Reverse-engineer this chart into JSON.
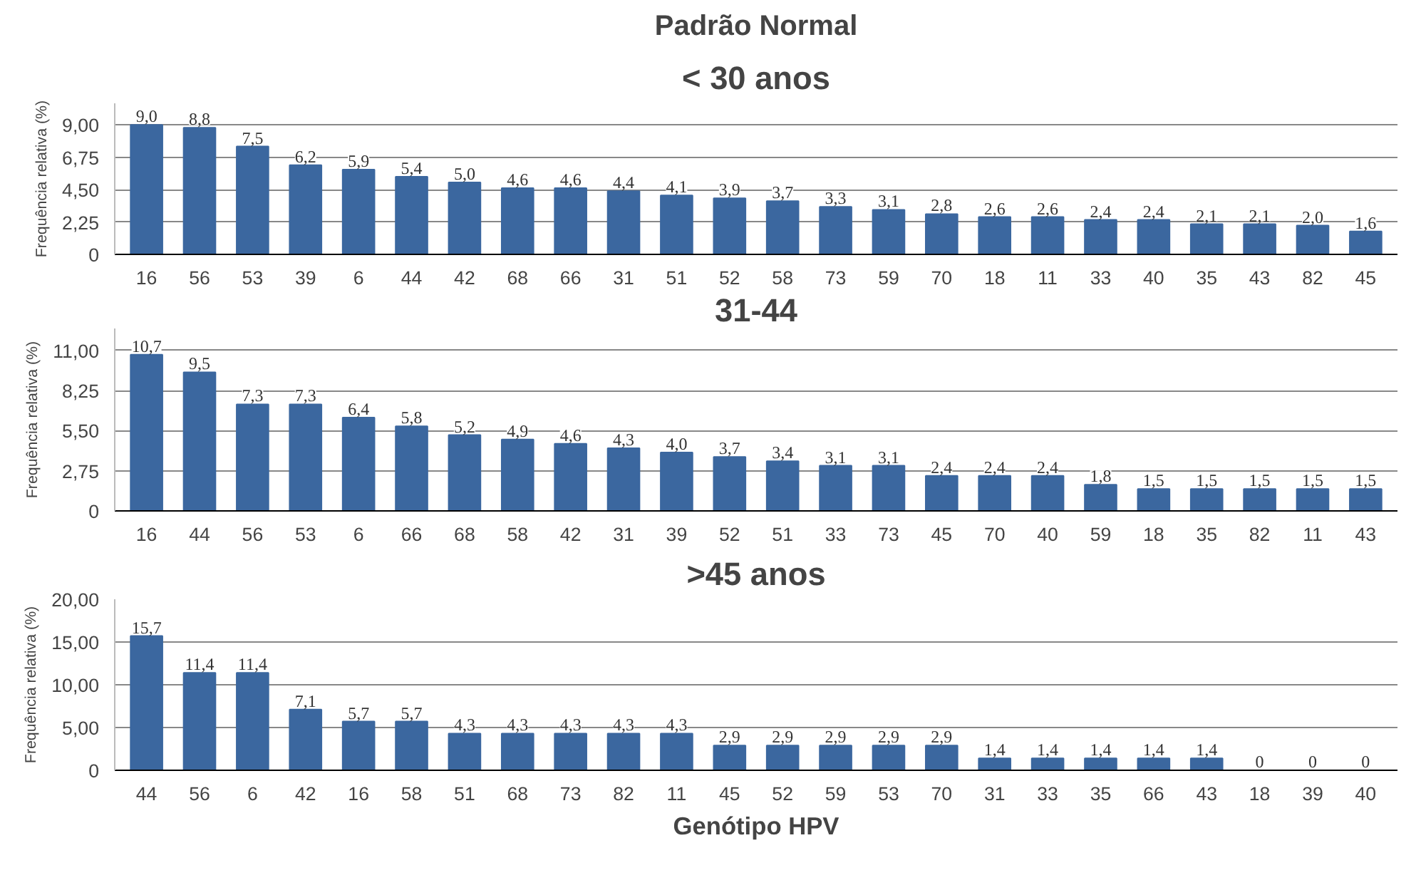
{
  "chart_data": [
    {
      "type": "bar",
      "title": "Padrão Normal",
      "subtitle": "< 30 anos",
      "ylabel": "Frequência relativa (%)",
      "categories": [
        "16",
        "56",
        "53",
        "39",
        "6",
        "44",
        "42",
        "68",
        "66",
        "31",
        "51",
        "52",
        "58",
        "73",
        "59",
        "70",
        "18",
        "11",
        "33",
        "40",
        "35",
        "43",
        "82",
        "45"
      ],
      "values": [
        9.0,
        8.8,
        7.5,
        6.2,
        5.9,
        5.4,
        5.0,
        4.6,
        4.6,
        4.4,
        4.1,
        3.9,
        3.7,
        3.3,
        3.1,
        2.8,
        2.6,
        2.6,
        2.4,
        2.4,
        2.1,
        2.1,
        2.0,
        1.6
      ],
      "value_labels": [
        "9,0",
        "8,8",
        "7,5",
        "6,2",
        "5,9",
        "5,4",
        "5,0",
        "4,6",
        "4,6",
        "4,4",
        "4,1",
        "3,9",
        "3,7",
        "3,3",
        "3,1",
        "2,8",
        "2,6",
        "2,6",
        "2,4",
        "2,4",
        "2,1",
        "2,1",
        "2,0",
        "1,6"
      ],
      "color": "#3b679f",
      "ylim": [
        0,
        10.5
      ],
      "yticks": [
        {
          "value": 0,
          "label": "0"
        },
        {
          "value": 2.25,
          "label": "2,25"
        },
        {
          "value": 4.5,
          "label": "4,50"
        },
        {
          "value": 6.75,
          "label": "6,75"
        },
        {
          "value": 9,
          "label": "9,00"
        }
      ],
      "grid": "y"
    },
    {
      "type": "bar",
      "title": "31-44",
      "ylabel": "Frequência relativa (%)",
      "categories": [
        "16",
        "44",
        "56",
        "53",
        "6",
        "66",
        "68",
        "58",
        "42",
        "31",
        "39",
        "52",
        "51",
        "33",
        "73",
        "45",
        "70",
        "40",
        "59",
        "18",
        "35",
        "82",
        "11",
        "43"
      ],
      "values": [
        10.7,
        9.5,
        7.3,
        7.3,
        6.4,
        5.8,
        5.2,
        4.9,
        4.6,
        4.3,
        4.0,
        3.7,
        3.4,
        3.1,
        3.1,
        2.4,
        2.4,
        2.4,
        1.8,
        1.5,
        1.5,
        1.5,
        1.5,
        1.5
      ],
      "value_labels": [
        "10,7",
        "9,5",
        "7,3",
        "7,3",
        "6,4",
        "5,8",
        "5,2",
        "4,9",
        "4,6",
        "4,3",
        "4,0",
        "3,7",
        "3,4",
        "3,1",
        "3,1",
        "2,4",
        "2,4",
        "2,4",
        "1,8",
        "1,5",
        "1,5",
        "1,5",
        "1,5",
        "1,5"
      ],
      "color": "#3b679f",
      "ylim": [
        0,
        12.5
      ],
      "yticks": [
        {
          "value": 0,
          "label": "0"
        },
        {
          "value": 2.75,
          "label": "2,75"
        },
        {
          "value": 5.5,
          "label": "5,50"
        },
        {
          "value": 8.25,
          "label": "8,25"
        },
        {
          "value": 11,
          "label": "11,00"
        }
      ],
      "grid": "y"
    },
    {
      "type": "bar",
      "title": ">45 anos",
      "xlabel": "Genótipo HPV",
      "ylabel": "Frequência relativa (%)",
      "categories": [
        "44",
        "56",
        "6",
        "42",
        "16",
        "58",
        "51",
        "68",
        "73",
        "82",
        "11",
        "45",
        "52",
        "59",
        "53",
        "70",
        "31",
        "33",
        "35",
        "66",
        "43",
        "18",
        "39",
        "40"
      ],
      "values": [
        15.7,
        11.4,
        11.4,
        7.1,
        5.7,
        5.7,
        4.3,
        4.3,
        4.3,
        4.3,
        4.3,
        2.9,
        2.9,
        2.9,
        2.9,
        2.9,
        1.4,
        1.4,
        1.4,
        1.4,
        1.4,
        0,
        0,
        0
      ],
      "value_labels": [
        "15,7",
        "11,4",
        "11,4",
        "7,1",
        "5,7",
        "5,7",
        "4,3",
        "4,3",
        "4,3",
        "4,3",
        "4,3",
        "2,9",
        "2,9",
        "2,9",
        "2,9",
        "2,9",
        "1,4",
        "1,4",
        "1,4",
        "1,4",
        "1,4",
        "0",
        "0",
        "0"
      ],
      "color": "#3b679f",
      "ylim": [
        0,
        20
      ],
      "yticks": [
        {
          "value": 0,
          "label": "0"
        },
        {
          "value": 5,
          "label": "5,00"
        },
        {
          "value": 10,
          "label": "10,00"
        },
        {
          "value": 15,
          "label": "15,00"
        },
        {
          "value": 20,
          "label": "20,00"
        }
      ],
      "grid": "y"
    }
  ]
}
